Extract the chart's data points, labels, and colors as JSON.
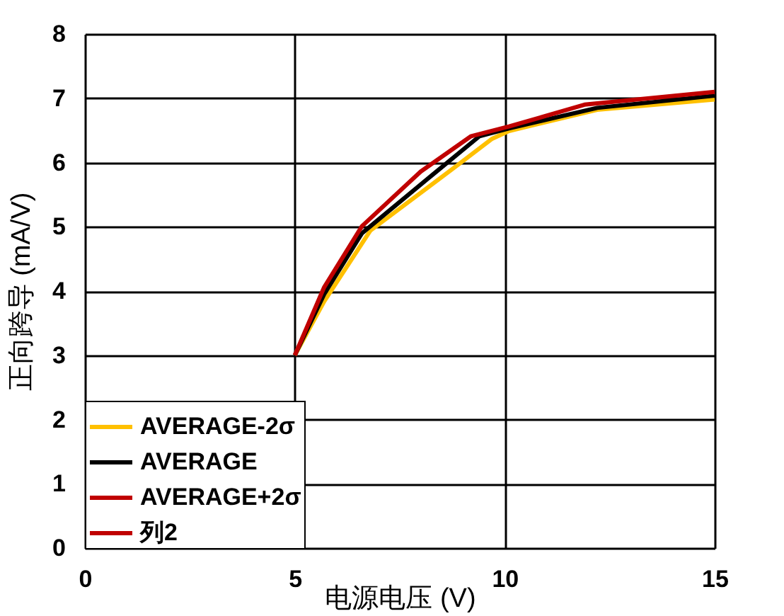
{
  "chart_data": {
    "type": "line",
    "xlabel": "电源电压 (V)",
    "ylabel": "正向跨导 (mA/V)",
    "xlim": [
      0,
      15
    ],
    "xticks": [
      0,
      5,
      10,
      15
    ],
    "ylim": [
      0,
      8
    ],
    "yticks": [
      0,
      1,
      2,
      3,
      4,
      5,
      6,
      7,
      8
    ],
    "grid": true,
    "legend": "bottom left",
    "line_style": "solid",
    "marker": "none",
    "series": [
      {
        "name": "AVERAGE-2σ",
        "color": "#ffc000",
        "x": [
          5,
          5.7,
          6.8,
          8.9,
          9.7,
          10.1,
          12.2,
          15
        ],
        "values": [
          3.0,
          3.84,
          4.94,
          5.97,
          6.37,
          6.49,
          6.82,
          6.98
        ]
      },
      {
        "name": "AVERAGE",
        "color": "#000000",
        "x": [
          5,
          5.7,
          6.6,
          8.3,
          9.4,
          10.1,
          12.2,
          15
        ],
        "values": [
          3.0,
          3.95,
          4.9,
          5.82,
          6.41,
          6.53,
          6.85,
          7.04
        ]
      },
      {
        "name": "AVERAGE+2σ",
        "color": "#c00000",
        "x": [
          5,
          5.7,
          6.6,
          8.0,
          9.2,
          10.1,
          11.9,
          15
        ],
        "values": [
          3.0,
          4.06,
          5.01,
          5.86,
          6.41,
          6.56,
          6.9,
          7.1
        ]
      },
      {
        "name": "列2",
        "color": "#c00000"
      }
    ]
  }
}
